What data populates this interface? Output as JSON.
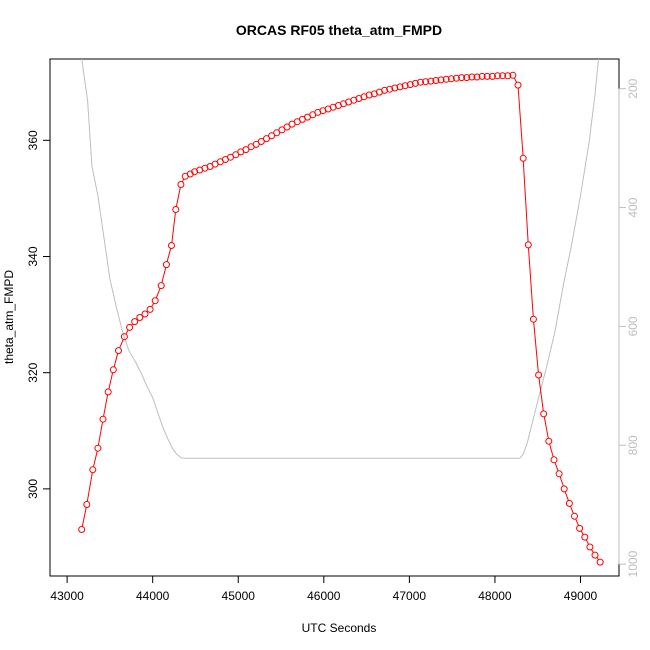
{
  "chart_data": {
    "type": "line",
    "title": "ORCAS RF05 theta_atm_FMPD",
    "xlabel": "UTC Seconds",
    "ylabel": "theta_atm_FMPD",
    "xlim": [
      42800,
      49450
    ],
    "ylim": [
      285,
      374
    ],
    "y2lim": [
      1020,
      150
    ],
    "x_ticks": [
      43000,
      44000,
      45000,
      46000,
      47000,
      48000,
      49000
    ],
    "y_ticks": [
      300,
      320,
      340,
      360
    ],
    "y2_ticks": [
      200,
      400,
      600,
      800,
      1000
    ],
    "grid": false,
    "series": [
      {
        "color": "#ff0000",
        "style": "line+open-circles",
        "x": [
          43170,
          43230,
          43300,
          43360,
          43420,
          43480,
          43540,
          43600,
          43670,
          43730,
          43790,
          43850,
          43910,
          43970,
          44030,
          44100,
          44160,
          44220,
          44270,
          44330,
          44380,
          44440,
          44490,
          44550,
          44610,
          44670,
          44730,
          44790,
          44850,
          44910,
          44970,
          45030,
          45090,
          45150,
          45210,
          45270,
          45330,
          45390,
          45450,
          45510,
          45570,
          45630,
          45690,
          45750,
          45810,
          45870,
          45930,
          45990,
          46050,
          46110,
          46170,
          46230,
          46290,
          46350,
          46410,
          46470,
          46530,
          46590,
          46650,
          46710,
          46770,
          46830,
          46890,
          46950,
          47010,
          47070,
          47130,
          47190,
          47250,
          47310,
          47370,
          47430,
          47490,
          47550,
          47610,
          47670,
          47730,
          47790,
          47850,
          47910,
          47970,
          48030,
          48090,
          48150,
          48210,
          48270,
          48330,
          48390,
          48450,
          48510,
          48570,
          48630,
          48690,
          48750,
          48810,
          48870,
          48930,
          48990,
          49050,
          49110,
          49170,
          49230
        ],
        "y": [
          293.0,
          297.3,
          303.3,
          307.0,
          312.0,
          316.7,
          320.5,
          323.8,
          326.2,
          327.8,
          328.8,
          329.5,
          330.1,
          330.9,
          332.4,
          335.0,
          338.6,
          341.9,
          348.1,
          352.4,
          353.8,
          354.2,
          354.6,
          354.9,
          355.2,
          355.5,
          355.9,
          356.3,
          356.7,
          357.1,
          357.5,
          358.0,
          358.4,
          358.9,
          359.3,
          359.8,
          360.3,
          360.8,
          361.3,
          361.8,
          362.3,
          362.8,
          363.2,
          363.6,
          364.0,
          364.4,
          364.8,
          365.1,
          365.4,
          365.7,
          366.0,
          366.3,
          366.6,
          366.9,
          367.2,
          367.5,
          367.8,
          368.0,
          368.3,
          368.6,
          368.8,
          369.0,
          369.2,
          369.4,
          369.6,
          369.8,
          370.0,
          370.1,
          370.2,
          370.3,
          370.4,
          370.5,
          370.6,
          370.7,
          370.8,
          370.8,
          370.9,
          370.9,
          371.0,
          371.0,
          371.0,
          371.1,
          371.1,
          371.1,
          371.2,
          369.5,
          356.9,
          342.0,
          329.2,
          319.6,
          312.9,
          308.2,
          305.0,
          302.6,
          300.0,
          297.5,
          295.3,
          293.2,
          291.7,
          290.0,
          288.6,
          287.4
        ]
      },
      {
        "color": "#bebebe",
        "axis": "right",
        "style": "line",
        "x": [
          43170,
          43240,
          43290,
          43360,
          43430,
          43500,
          43580,
          43650,
          43720,
          43800,
          43870,
          43930,
          44000,
          44060,
          44120,
          44180,
          44230,
          44280,
          44330,
          44380,
          44500,
          45000,
          46000,
          47000,
          48000,
          48290,
          48330,
          48380,
          48440,
          48520,
          48600,
          48700,
          48800,
          48900,
          49000,
          49100,
          49170,
          49210
        ],
        "y": [
          150,
          220,
          330,
          380,
          450,
          520,
          570,
          610,
          640,
          660,
          680,
          700,
          720,
          745,
          770,
          790,
          805,
          815,
          821,
          822,
          822,
          822,
          822,
          822,
          822,
          822,
          815,
          795,
          760,
          715,
          670,
          610,
          530,
          460,
          380,
          290,
          210,
          150
        ]
      }
    ]
  }
}
